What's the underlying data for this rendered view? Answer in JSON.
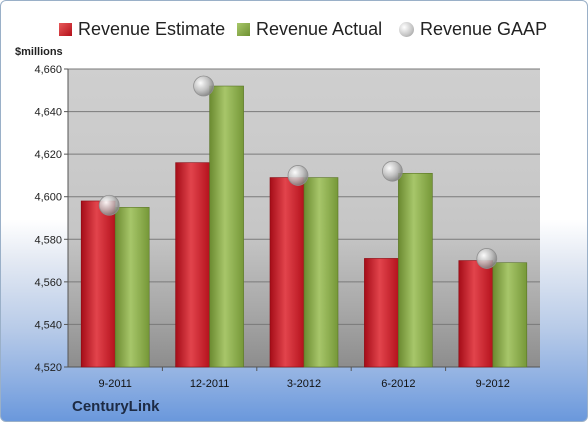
{
  "chart_data": {
    "type": "bar",
    "categories": [
      "9-2011",
      "12-2011",
      "3-2012",
      "6-2012",
      "9-2012"
    ],
    "series": [
      {
        "name": "Revenue Estimate",
        "kind": "bar",
        "values": [
          4598,
          4616,
          4609,
          4571,
          4570
        ]
      },
      {
        "name": "Revenue Actual",
        "kind": "bar",
        "values": [
          4595,
          4652,
          4609,
          4611,
          4569
        ]
      },
      {
        "name": "Revenue GAAP",
        "kind": "marker",
        "values": [
          4596,
          4652,
          4610,
          4612,
          4571
        ]
      }
    ],
    "ylabel": "$millions",
    "ylim": [
      4520,
      4660
    ],
    "yticks": [
      4520,
      4540,
      4560,
      4580,
      4600,
      4620,
      4640,
      4660
    ],
    "ytick_labels": [
      "4,520",
      "4,540",
      "4,560",
      "4,580",
      "4,600",
      "4,620",
      "4,640",
      "4,660"
    ],
    "grid": true,
    "legend_position": "top"
  },
  "company": "CenturyLink",
  "colors": {
    "estimate": "#c8202c",
    "actual": "#8cab4c",
    "gaap": "#b8b8b8"
  }
}
